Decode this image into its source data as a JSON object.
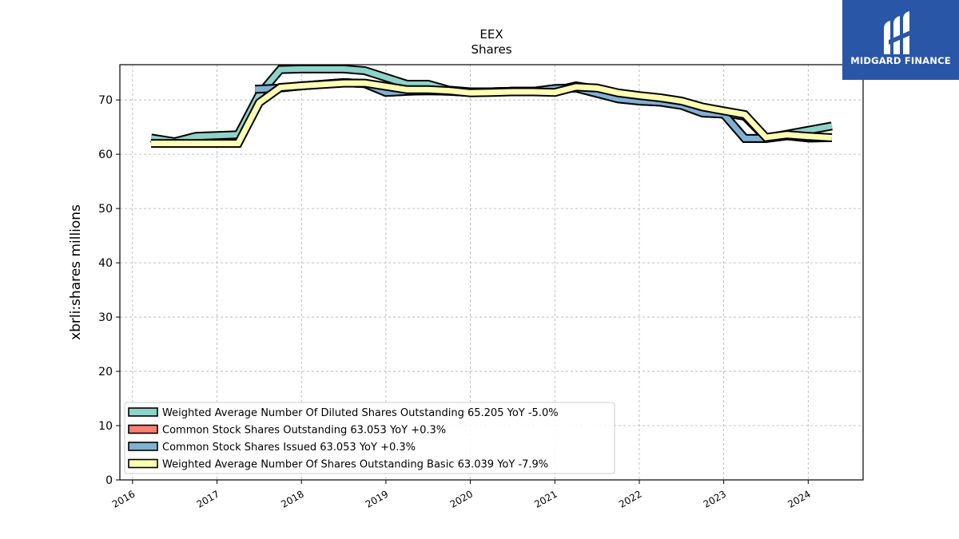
{
  "logo": {
    "text": "MIDGARD FINANCE"
  },
  "chart_data": {
    "type": "line",
    "title": "EEX",
    "subtitle": "Shares",
    "xlabel": "",
    "ylabel": "xbrli:shares millions",
    "ylim": [
      0,
      76.5
    ],
    "xlim": [
      2015.85,
      2024.65
    ],
    "yticks": [
      0,
      10,
      20,
      30,
      40,
      50,
      60,
      70
    ],
    "xticks": [
      2016,
      2017,
      2018,
      2019,
      2020,
      2021,
      2022,
      2023,
      2024
    ],
    "grid": true,
    "legend_position": "lower-left",
    "series": [
      {
        "name": "Weighted Average Number Of Diluted Shares Outstanding",
        "legend_label": "Weighted Average Number Of Diluted Shares Outstanding  65.205 YoY -5.0%",
        "color": "#8dd3c7",
        "x": [
          2016.22,
          2016.5,
          2016.75,
          2017.25,
          2017.5,
          2017.75,
          2018.0,
          2018.5,
          2018.75,
          2019.25,
          2019.5,
          2019.75,
          2020.0,
          2020.25,
          2020.5,
          2020.75,
          2021.0,
          2021.25,
          2021.5,
          2021.75,
          2022.0,
          2022.25,
          2022.5,
          2022.75,
          2023.0,
          2023.25,
          2023.5,
          2023.75,
          2024.0,
          2024.28
        ],
        "y": [
          63.0,
          62.3,
          63.3,
          63.6,
          71.0,
          75.6,
          75.7,
          75.7,
          75.4,
          72.9,
          72.9,
          71.8,
          71.5,
          71.5,
          71.6,
          71.6,
          71.7,
          72.6,
          72.0,
          71.0,
          70.6,
          70.0,
          69.2,
          68.3,
          67.6,
          67.0,
          63.0,
          63.7,
          64.4,
          65.2
        ]
      },
      {
        "name": "Common Stock Shares Outstanding",
        "legend_label": "Common Stock Shares Outstanding  63.053 YoY +0.3%",
        "color": "#fb8072",
        "x": [
          2017.45,
          2017.5,
          2017.75,
          2018.0,
          2018.5,
          2018.75,
          2019.0,
          2019.25,
          2019.5,
          2019.75,
          2020.0,
          2020.25,
          2020.5,
          2020.75,
          2021.0,
          2021.25,
          2021.5,
          2021.75,
          2022.0,
          2022.25,
          2022.5,
          2022.75,
          2023.0,
          2023.25,
          2023.5,
          2023.75,
          2024.0,
          2024.28
        ],
        "y": [
          72.0,
          72.0,
          72.2,
          72.6,
          73.2,
          73.0,
          71.4,
          71.6,
          71.7,
          71.6,
          71.4,
          71.5,
          71.6,
          71.6,
          72.1,
          72.2,
          71.2,
          70.2,
          69.8,
          69.6,
          69.0,
          67.6,
          67.4,
          62.9,
          62.9,
          63.4,
          63.0,
          63.05
        ]
      },
      {
        "name": "Common Stock Shares Issued",
        "legend_label": "Common Stock Shares Issued  63.053 YoY +0.3%",
        "color": "#80b1d3",
        "x": [
          2017.45,
          2017.5,
          2017.75,
          2018.0,
          2018.5,
          2018.75,
          2019.0,
          2019.25,
          2019.5,
          2019.75,
          2020.0,
          2020.25,
          2020.5,
          2020.75,
          2021.0,
          2021.25,
          2021.5,
          2021.75,
          2022.0,
          2022.25,
          2022.5,
          2022.75,
          2023.0,
          2023.25,
          2023.5,
          2023.75,
          2024.0,
          2024.28
        ],
        "y": [
          72.0,
          72.0,
          72.2,
          72.6,
          73.2,
          73.0,
          71.4,
          71.6,
          71.7,
          71.6,
          71.4,
          71.5,
          71.6,
          71.6,
          72.1,
          72.2,
          71.2,
          70.2,
          69.8,
          69.6,
          69.0,
          67.6,
          67.4,
          62.9,
          62.9,
          63.4,
          63.0,
          63.05
        ]
      },
      {
        "name": "Weighted Average Number Of Shares Outstanding Basic",
        "legend_label": "Weighted Average Number Of Shares Outstanding Basic  63.039 YoY -7.9%",
        "color": "#ffffb3",
        "x": [
          2016.22,
          2016.5,
          2016.75,
          2017.25,
          2017.5,
          2017.75,
          2018.0,
          2018.5,
          2018.75,
          2019.25,
          2019.5,
          2019.75,
          2020.0,
          2020.25,
          2020.5,
          2020.75,
          2021.0,
          2021.25,
          2021.5,
          2021.75,
          2022.0,
          2022.25,
          2022.5,
          2022.75,
          2023.0,
          2023.25,
          2023.5,
          2023.75,
          2024.0,
          2024.28
        ],
        "y": [
          62.0,
          62.0,
          62.0,
          62.0,
          69.5,
          72.3,
          72.6,
          73.1,
          73.1,
          71.9,
          71.9,
          71.7,
          71.3,
          71.4,
          71.5,
          71.5,
          71.4,
          72.4,
          72.2,
          71.3,
          70.8,
          70.4,
          69.8,
          68.7,
          68.0,
          67.3,
          63.1,
          63.6,
          63.3,
          63.04
        ]
      }
    ]
  }
}
